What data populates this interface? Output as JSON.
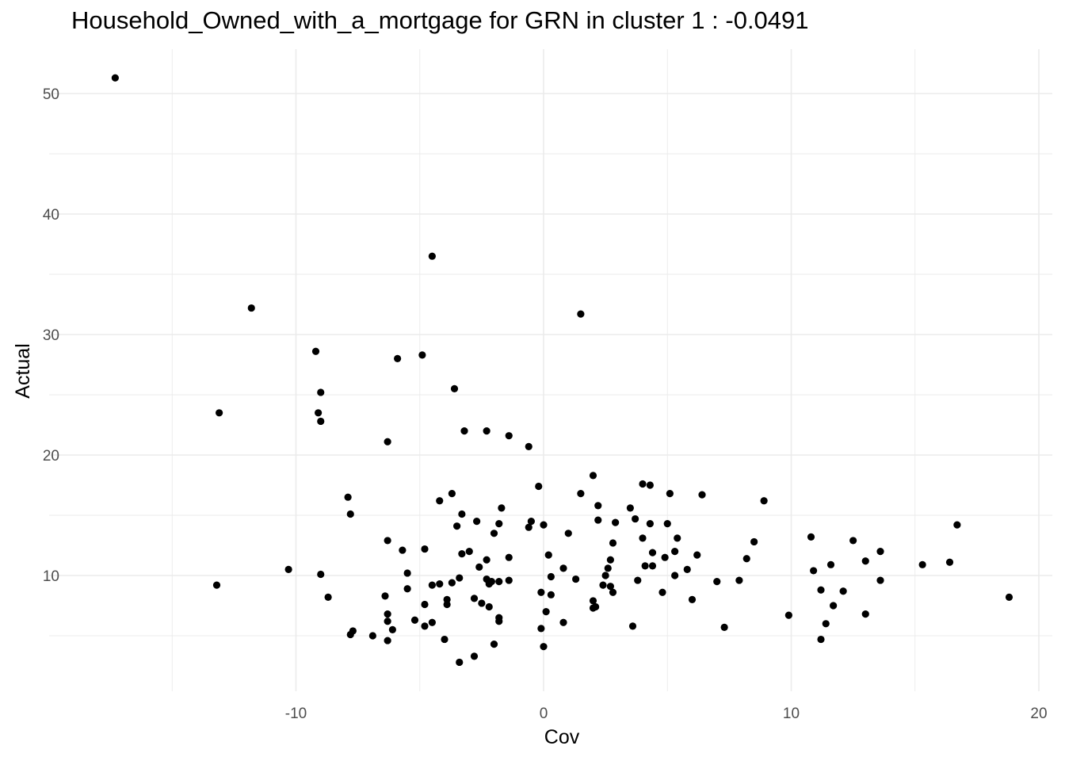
{
  "chart_data": {
    "type": "scatter",
    "title": "Household_Owned_with_a_mortgage for GRN in cluster 1 : -0.0491",
    "xlabel": "Cov",
    "ylabel": "Actual",
    "xlim": [
      -18.5,
      20.5
    ],
    "ylim": [
      2.0,
      53.5
    ],
    "x_ticks": [
      -10,
      0,
      10,
      20
    ],
    "y_ticks": [
      10,
      20,
      30,
      40,
      50
    ],
    "x_tick_labels": [
      "-10",
      "0",
      "10",
      "20"
    ],
    "y_tick_labels": [
      "10",
      "20",
      "30",
      "40",
      "50"
    ],
    "grid": true,
    "point_color": "#000000",
    "gridline_color": "#ebebeb",
    "points": [
      {
        "x": -17.3,
        "y": 51.3
      },
      {
        "x": -4.5,
        "y": 36.5
      },
      {
        "x": -11.8,
        "y": 32.2
      },
      {
        "x": 1.5,
        "y": 31.7
      },
      {
        "x": -9.2,
        "y": 28.6
      },
      {
        "x": -4.9,
        "y": 28.3
      },
      {
        "x": -5.9,
        "y": 28.0
      },
      {
        "x": -3.6,
        "y": 25.5
      },
      {
        "x": -9.0,
        "y": 25.2
      },
      {
        "x": -13.1,
        "y": 23.5
      },
      {
        "x": -9.1,
        "y": 23.5
      },
      {
        "x": -9.0,
        "y": 22.8
      },
      {
        "x": -3.2,
        "y": 22.0
      },
      {
        "x": -2.3,
        "y": 22.0
      },
      {
        "x": -1.4,
        "y": 21.6
      },
      {
        "x": -6.3,
        "y": 21.1
      },
      {
        "x": -0.6,
        "y": 20.7
      },
      {
        "x": 2.0,
        "y": 18.3
      },
      {
        "x": 4.0,
        "y": 17.6
      },
      {
        "x": 4.3,
        "y": 17.5
      },
      {
        "x": -0.2,
        "y": 17.4
      },
      {
        "x": -3.7,
        "y": 16.8
      },
      {
        "x": 1.5,
        "y": 16.8
      },
      {
        "x": 5.1,
        "y": 16.8
      },
      {
        "x": 6.4,
        "y": 16.7
      },
      {
        "x": -7.9,
        "y": 16.5
      },
      {
        "x": -4.2,
        "y": 16.2
      },
      {
        "x": 8.9,
        "y": 16.2
      },
      {
        "x": 2.2,
        "y": 15.8
      },
      {
        "x": -1.7,
        "y": 15.6
      },
      {
        "x": 3.5,
        "y": 15.6
      },
      {
        "x": -7.8,
        "y": 15.1
      },
      {
        "x": -3.3,
        "y": 15.1
      },
      {
        "x": 3.7,
        "y": 14.7
      },
      {
        "x": 2.2,
        "y": 14.6
      },
      {
        "x": -0.5,
        "y": 14.5
      },
      {
        "x": -2.7,
        "y": 14.5
      },
      {
        "x": 2.9,
        "y": 14.4
      },
      {
        "x": -1.8,
        "y": 14.3
      },
      {
        "x": 4.3,
        "y": 14.3
      },
      {
        "x": 5.0,
        "y": 14.3
      },
      {
        "x": 0.0,
        "y": 14.2
      },
      {
        "x": 16.7,
        "y": 14.2
      },
      {
        "x": -3.5,
        "y": 14.1
      },
      {
        "x": -0.6,
        "y": 14.0
      },
      {
        "x": -2.0,
        "y": 13.5
      },
      {
        "x": 1.0,
        "y": 13.5
      },
      {
        "x": 10.8,
        "y": 13.2
      },
      {
        "x": 5.4,
        "y": 13.1
      },
      {
        "x": 4.0,
        "y": 13.1
      },
      {
        "x": -6.3,
        "y": 12.9
      },
      {
        "x": 12.5,
        "y": 12.9
      },
      {
        "x": 8.5,
        "y": 12.8
      },
      {
        "x": 2.8,
        "y": 12.7
      },
      {
        "x": -4.8,
        "y": 12.2
      },
      {
        "x": -5.7,
        "y": 12.1
      },
      {
        "x": -3.0,
        "y": 12.0
      },
      {
        "x": 5.3,
        "y": 12.0
      },
      {
        "x": 13.6,
        "y": 12.0
      },
      {
        "x": 4.4,
        "y": 11.9
      },
      {
        "x": -3.3,
        "y": 11.8
      },
      {
        "x": 0.2,
        "y": 11.7
      },
      {
        "x": 6.2,
        "y": 11.7
      },
      {
        "x": -1.4,
        "y": 11.5
      },
      {
        "x": 4.9,
        "y": 11.5
      },
      {
        "x": 8.2,
        "y": 11.4
      },
      {
        "x": -2.3,
        "y": 11.3
      },
      {
        "x": 2.7,
        "y": 11.3
      },
      {
        "x": 13.0,
        "y": 11.2
      },
      {
        "x": 16.4,
        "y": 11.1
      },
      {
        "x": 11.6,
        "y": 10.9
      },
      {
        "x": 15.3,
        "y": 10.9
      },
      {
        "x": 4.1,
        "y": 10.8
      },
      {
        "x": 4.4,
        "y": 10.8
      },
      {
        "x": -2.6,
        "y": 10.7
      },
      {
        "x": 0.8,
        "y": 10.6
      },
      {
        "x": 2.6,
        "y": 10.6
      },
      {
        "x": 5.8,
        "y": 10.5
      },
      {
        "x": -10.3,
        "y": 10.5
      },
      {
        "x": 10.9,
        "y": 10.4
      },
      {
        "x": -5.5,
        "y": 10.2
      },
      {
        "x": -9.0,
        "y": 10.1
      },
      {
        "x": 2.5,
        "y": 10.0
      },
      {
        "x": 5.3,
        "y": 10.0
      },
      {
        "x": 0.3,
        "y": 9.9
      },
      {
        "x": -3.4,
        "y": 9.8
      },
      {
        "x": -2.3,
        "y": 9.7
      },
      {
        "x": 1.3,
        "y": 9.7
      },
      {
        "x": -1.4,
        "y": 9.6
      },
      {
        "x": 3.8,
        "y": 9.6
      },
      {
        "x": 7.9,
        "y": 9.6
      },
      {
        "x": 13.6,
        "y": 9.6
      },
      {
        "x": -2.1,
        "y": 9.5
      },
      {
        "x": -1.8,
        "y": 9.5
      },
      {
        "x": 7.0,
        "y": 9.5
      },
      {
        "x": -3.7,
        "y": 9.4
      },
      {
        "x": -4.2,
        "y": 9.3
      },
      {
        "x": -2.2,
        "y": 9.3
      },
      {
        "x": -13.2,
        "y": 9.2
      },
      {
        "x": -4.5,
        "y": 9.2
      },
      {
        "x": 2.4,
        "y": 9.2
      },
      {
        "x": 2.7,
        "y": 9.1
      },
      {
        "x": -5.5,
        "y": 8.9
      },
      {
        "x": 11.2,
        "y": 8.8
      },
      {
        "x": 12.1,
        "y": 8.7
      },
      {
        "x": -0.1,
        "y": 8.6
      },
      {
        "x": 2.8,
        "y": 8.6
      },
      {
        "x": 4.8,
        "y": 8.6
      },
      {
        "x": 0.3,
        "y": 8.4
      },
      {
        "x": -6.4,
        "y": 8.3
      },
      {
        "x": -8.7,
        "y": 8.2
      },
      {
        "x": 18.8,
        "y": 8.2
      },
      {
        "x": -2.8,
        "y": 8.1
      },
      {
        "x": 6.0,
        "y": 8.0
      },
      {
        "x": -3.9,
        "y": 8.0
      },
      {
        "x": 2.0,
        "y": 7.9
      },
      {
        "x": -2.5,
        "y": 7.7
      },
      {
        "x": -4.8,
        "y": 7.6
      },
      {
        "x": -3.9,
        "y": 7.6
      },
      {
        "x": 11.7,
        "y": 7.5
      },
      {
        "x": -2.2,
        "y": 7.4
      },
      {
        "x": 2.1,
        "y": 7.4
      },
      {
        "x": 2.0,
        "y": 7.3
      },
      {
        "x": 0.1,
        "y": 7.0
      },
      {
        "x": 13.0,
        "y": 6.8
      },
      {
        "x": -6.3,
        "y": 6.8
      },
      {
        "x": 9.9,
        "y": 6.7
      },
      {
        "x": -1.8,
        "y": 6.5
      },
      {
        "x": -5.2,
        "y": 6.3
      },
      {
        "x": -6.3,
        "y": 6.2
      },
      {
        "x": -1.8,
        "y": 6.2
      },
      {
        "x": -4.5,
        "y": 6.1
      },
      {
        "x": 0.8,
        "y": 6.1
      },
      {
        "x": 11.4,
        "y": 6.0
      },
      {
        "x": -4.8,
        "y": 5.8
      },
      {
        "x": 3.6,
        "y": 5.8
      },
      {
        "x": 7.3,
        "y": 5.7
      },
      {
        "x": -0.1,
        "y": 5.6
      },
      {
        "x": -6.1,
        "y": 5.5
      },
      {
        "x": -7.7,
        "y": 5.4
      },
      {
        "x": -7.8,
        "y": 5.1
      },
      {
        "x": -6.9,
        "y": 5.0
      },
      {
        "x": -4.0,
        "y": 4.7
      },
      {
        "x": 11.2,
        "y": 4.7
      },
      {
        "x": -6.3,
        "y": 4.6
      },
      {
        "x": -2.0,
        "y": 4.3
      },
      {
        "x": 0.0,
        "y": 4.1
      },
      {
        "x": -2.8,
        "y": 3.3
      },
      {
        "x": -3.4,
        "y": 2.8
      }
    ]
  }
}
